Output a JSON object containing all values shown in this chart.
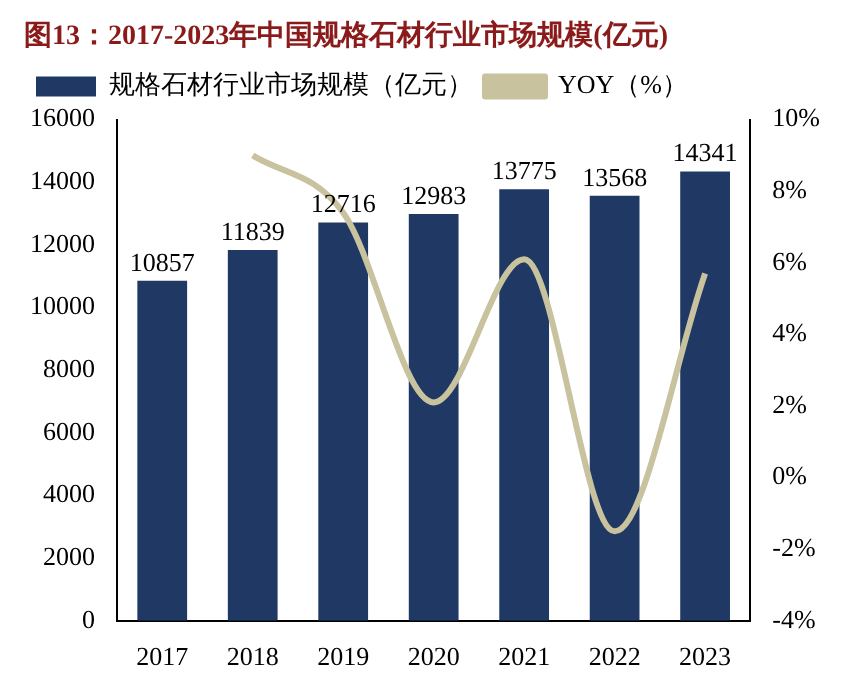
{
  "chart_data": {
    "type": "bar",
    "title": "图13：2017-2023年中国规格石材行业市场规模(亿元)",
    "categories": [
      "2017",
      "2018",
      "2019",
      "2020",
      "2021",
      "2022",
      "2023"
    ],
    "series": [
      {
        "name": "规格石材行业市场规模（亿元）",
        "color": "#1f3864",
        "values": [
          10857,
          11839,
          12716,
          12983,
          13775,
          13568,
          14341
        ],
        "value_labels": [
          "10857",
          "11839",
          "12716",
          "12983",
          "13775",
          "13568",
          "14341"
        ]
      },
      {
        "name": "YOY（%）",
        "type": "line",
        "axis": "y2",
        "color": "#c8c29e",
        "values": [
          null,
          9.0,
          7.4,
          2.1,
          6.1,
          -1.5,
          5.7
        ]
      }
    ],
    "ylim": [
      0,
      16000
    ],
    "yticks": [
      0,
      2000,
      4000,
      6000,
      8000,
      10000,
      12000,
      14000,
      16000
    ],
    "y2lim": [
      -4,
      10
    ],
    "y2ticks": [
      {
        "value": -4,
        "label": "-4%"
      },
      {
        "value": -2,
        "label": "-2%"
      },
      {
        "value": 0,
        "label": "0%"
      },
      {
        "value": 2,
        "label": "2%"
      },
      {
        "value": 4,
        "label": "4%"
      },
      {
        "value": 6,
        "label": "6%"
      },
      {
        "value": 8,
        "label": "8%"
      },
      {
        "value": 10,
        "label": "10%"
      }
    ],
    "grid": false,
    "legend": "top",
    "marker": "none",
    "line_style": "solid"
  }
}
